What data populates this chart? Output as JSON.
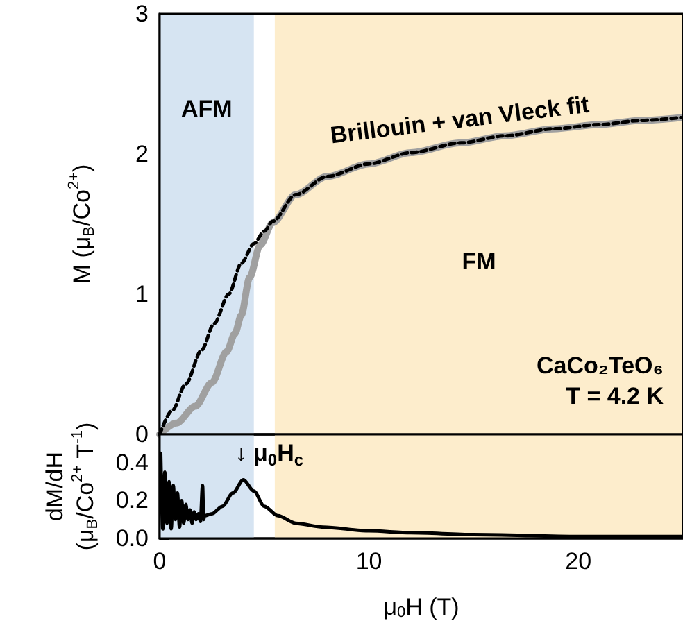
{
  "chart_data": [
    {
      "type": "line",
      "ylabel": "M (μ$_{B}$/Co$^{2+}$)",
      "xlim": [
        0,
        25
      ],
      "xticks": [
        0,
        10,
        20
      ],
      "ylim": [
        0,
        3
      ],
      "yticks": [
        0,
        1,
        2,
        3
      ],
      "tick_labels": "y",
      "grid": false,
      "legend": false,
      "series": [
        {
          "color": "#a0a0a0",
          "line_style": "solid",
          "x": [
            0,
            0.8,
            1.7,
            2.5,
            3.2,
            3.6,
            3.9,
            4.3,
            4.8,
            5.4,
            6.5,
            8,
            10,
            12,
            14.4,
            16.5,
            18.8,
            21,
            23,
            24.9
          ],
          "values": [
            0,
            0.08,
            0.2,
            0.37,
            0.59,
            0.72,
            0.85,
            1.12,
            1.35,
            1.51,
            1.71,
            1.84,
            1.93,
            2.01,
            2.08,
            2.13,
            2.18,
            2.21,
            2.24,
            2.26
          ]
        },
        {
          "name": "Brillouin + van Vleck fit",
          "color": "#000000",
          "line_style": "dashed",
          "x": [
            0,
            0.6,
            1.25,
            2,
            2.6,
            3.3,
            3.9,
            4.5,
            5,
            5.4,
            6.5,
            8,
            10,
            12,
            14.4,
            16.5,
            18.8,
            21,
            23,
            24.9
          ],
          "values": [
            0,
            0.17,
            0.36,
            0.6,
            0.79,
            1.0,
            1.22,
            1.36,
            1.45,
            1.52,
            1.71,
            1.84,
            1.93,
            2.01,
            2.08,
            2.13,
            2.18,
            2.21,
            2.24,
            2.26
          ]
        }
      ],
      "bands": [
        {
          "axis": "x",
          "from": 0,
          "to": 4.5,
          "label": "AFM",
          "color": "#d6e4f2"
        },
        {
          "axis": "x",
          "from": 5.5,
          "to": 25,
          "label": "FM",
          "color": "#fdedcc"
        }
      ],
      "annotations": [
        "CaCo₂TeO₆",
        "T = 4.2 K"
      ]
    },
    {
      "type": "line",
      "xlabel": "μ$_{0}$H (T)",
      "ylabel": "dM/dH\n(μ$_{B}$/Co$^{2+}$ T$^{-1}$)",
      "xlim": [
        0,
        25
      ],
      "xticks": [
        0,
        10,
        20
      ],
      "ylim": [
        0,
        0.55
      ],
      "yticks": [
        {
          "value": 0,
          "label": "0.0"
        },
        {
          "value": 0.2,
          "label": "0.2"
        },
        {
          "value": 0.4,
          "label": "0.4"
        }
      ],
      "grid": false,
      "legend": false,
      "series": [
        {
          "color": "#000000",
          "line_style": "solid",
          "x": [
            0.05,
            0.15,
            0.25,
            0.35,
            0.45,
            0.55,
            0.65,
            0.75,
            0.85,
            0.95,
            1.05,
            1.15,
            1.25,
            1.35,
            1.45,
            1.55,
            1.65,
            1.75,
            1.85,
            1.95,
            2.05,
            2.1,
            2.15,
            2.5,
            3.0,
            3.5,
            4.0,
            4.5,
            5.0,
            5.65,
            6.5,
            7.8,
            10,
            12,
            15,
            20,
            25
          ],
          "values": [
            0.45,
            0.05,
            0.35,
            0.08,
            0.3,
            0.05,
            0.28,
            0.1,
            0.24,
            0.06,
            0.2,
            0.08,
            0.18,
            0.1,
            0.15,
            0.08,
            0.14,
            0.1,
            0.13,
            0.09,
            0.28,
            0.1,
            0.12,
            0.13,
            0.17,
            0.24,
            0.31,
            0.25,
            0.17,
            0.12,
            0.08,
            0.06,
            0.04,
            0.03,
            0.02,
            0.01,
            0.01
          ]
        }
      ],
      "bands": [
        {
          "axis": "x",
          "from": 0,
          "to": 4.5,
          "color": "#d6e4f2"
        },
        {
          "axis": "x",
          "from": 5.5,
          "to": 25,
          "color": "#fdedcc"
        }
      ],
      "annotations": [
        {
          "text": "↓ μ$_{0}$H$_{c}$",
          "x": 4,
          "y": 0.31
        }
      ]
    }
  ]
}
